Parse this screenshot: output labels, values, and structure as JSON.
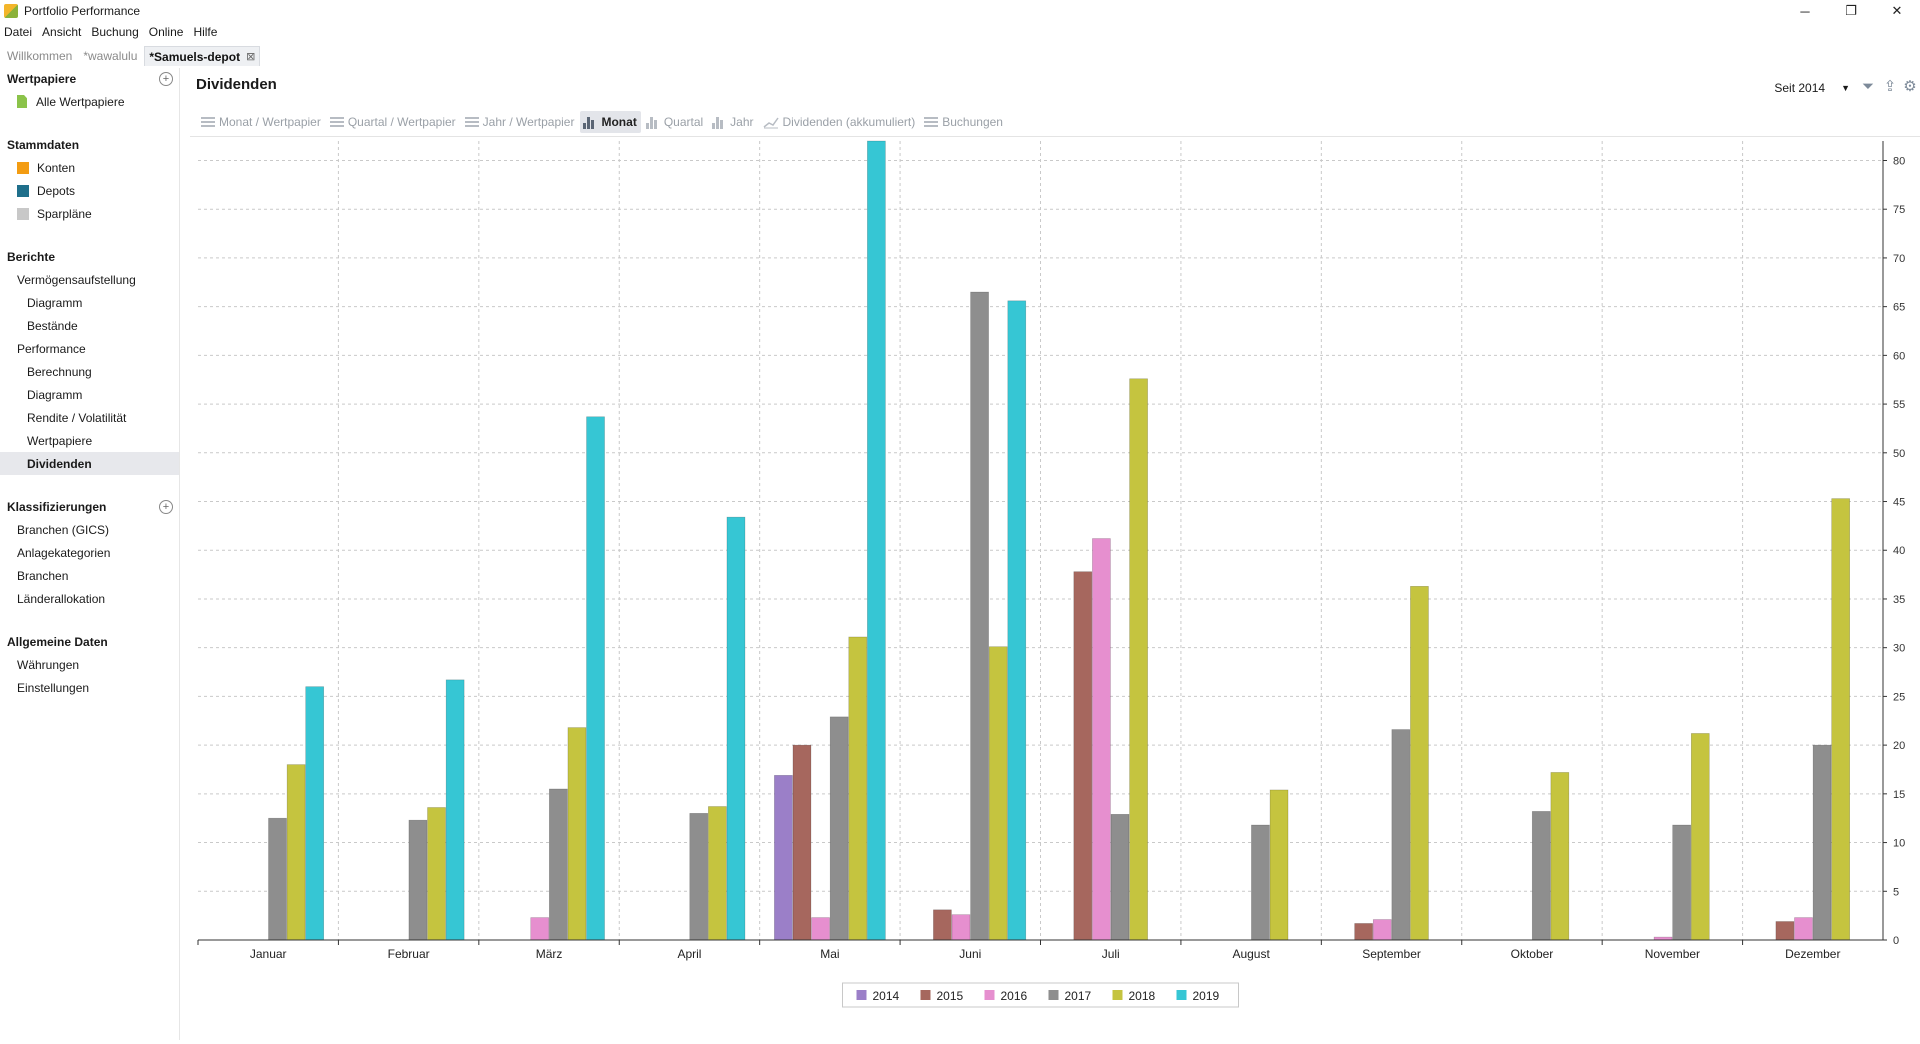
{
  "window": {
    "title": "Portfolio Performance",
    "min": "─",
    "max": "❐",
    "close": "✕"
  },
  "menu": [
    "Datei",
    "Ansicht",
    "Buchung",
    "Online",
    "Hilfe"
  ],
  "doc_tabs": [
    {
      "label": "Willkommen",
      "active": false
    },
    {
      "label": "*wawalulu",
      "active": false
    },
    {
      "label": "*Samuels-depot",
      "active": true,
      "close": "⊠"
    }
  ],
  "sidebar": {
    "wertpapiere": {
      "title": "Wertpapiere",
      "items": [
        {
          "label": "Alle Wertpapiere",
          "icon": "document-icon"
        }
      ]
    },
    "stammdaten": {
      "title": "Stammdaten",
      "items": [
        {
          "label": "Konten",
          "color": "#f39c12"
        },
        {
          "label": "Depots",
          "color": "#1f6f8b"
        },
        {
          "label": "Sparpläne",
          "color": "#c8c8c8"
        }
      ]
    },
    "berichte": {
      "title": "Berichte",
      "items": [
        {
          "label": "Vermögensaufstellung",
          "level": 1
        },
        {
          "label": "Diagramm",
          "level": 2
        },
        {
          "label": "Bestände",
          "level": 2
        },
        {
          "label": "Performance",
          "level": 1
        },
        {
          "label": "Berechnung",
          "level": 2
        },
        {
          "label": "Diagramm",
          "level": 2
        },
        {
          "label": "Rendite / Volatilität",
          "level": 2
        },
        {
          "label": "Wertpapiere",
          "level": 2
        },
        {
          "label": "Dividenden",
          "level": 2,
          "active": true
        }
      ]
    },
    "klassifizierungen": {
      "title": "Klassifizierungen",
      "items": [
        {
          "label": "Branchen (GICS)"
        },
        {
          "label": "Anlagekategorien"
        },
        {
          "label": "Branchen"
        },
        {
          "label": "Länderallokation"
        }
      ]
    },
    "allgemein": {
      "title": "Allgemeine Daten",
      "items": [
        {
          "label": "Währungen"
        },
        {
          "label": "Einstellungen"
        }
      ]
    }
  },
  "main": {
    "title": "Dividenden",
    "since": "Seit 2014",
    "view_tabs": [
      {
        "label": "Monat / Wertpapier",
        "icon": "list"
      },
      {
        "label": "Quartal / Wertpapier",
        "icon": "list"
      },
      {
        "label": "Jahr / Wertpapier",
        "icon": "list"
      },
      {
        "label": "Monat",
        "icon": "bars",
        "active": true
      },
      {
        "label": "Quartal",
        "icon": "bars"
      },
      {
        "label": "Jahr",
        "icon": "bars"
      },
      {
        "label": "Dividenden (akkumuliert)",
        "icon": "line"
      },
      {
        "label": "Buchungen",
        "icon": "list"
      }
    ]
  },
  "chart_data": {
    "type": "bar",
    "categories": [
      "Januar",
      "Februar",
      "März",
      "April",
      "Mai",
      "Juni",
      "Juli",
      "August",
      "September",
      "Oktober",
      "November",
      "Dezember"
    ],
    "series": [
      {
        "name": "2014",
        "color": "#9b7fc8",
        "values": [
          0,
          0,
          0,
          0,
          16.9,
          0,
          0,
          0,
          0,
          0,
          0,
          0
        ]
      },
      {
        "name": "2015",
        "color": "#a6675e",
        "values": [
          0,
          0,
          0,
          0,
          20.0,
          3.1,
          37.8,
          0,
          1.7,
          0,
          0,
          1.9
        ]
      },
      {
        "name": "2016",
        "color": "#e68fcf",
        "values": [
          0,
          0,
          2.3,
          0,
          2.3,
          2.6,
          41.2,
          0,
          2.1,
          0,
          0.3,
          2.3
        ]
      },
      {
        "name": "2017",
        "color": "#8e8e8e",
        "values": [
          12.5,
          12.3,
          15.5,
          13.0,
          22.9,
          66.5,
          12.9,
          11.8,
          21.6,
          13.2,
          11.8,
          20.0
        ]
      },
      {
        "name": "2018",
        "color": "#c5c43f",
        "values": [
          18.0,
          13.6,
          21.8,
          13.7,
          31.1,
          30.1,
          57.6,
          15.4,
          36.3,
          17.2,
          21.2,
          45.3
        ]
      },
      {
        "name": "2019",
        "color": "#36c6d4",
        "values": [
          26.0,
          26.7,
          53.7,
          43.4,
          82.0,
          65.6,
          0,
          0,
          0,
          0,
          0,
          0
        ]
      }
    ],
    "ylim": [
      0,
      82
    ],
    "yticks": [
      0,
      5,
      10,
      15,
      20,
      25,
      30,
      35,
      40,
      45,
      50,
      55,
      60,
      65,
      70,
      75,
      80
    ],
    "y_axis_side": "right",
    "grid": true,
    "legend": "bottom-center"
  }
}
